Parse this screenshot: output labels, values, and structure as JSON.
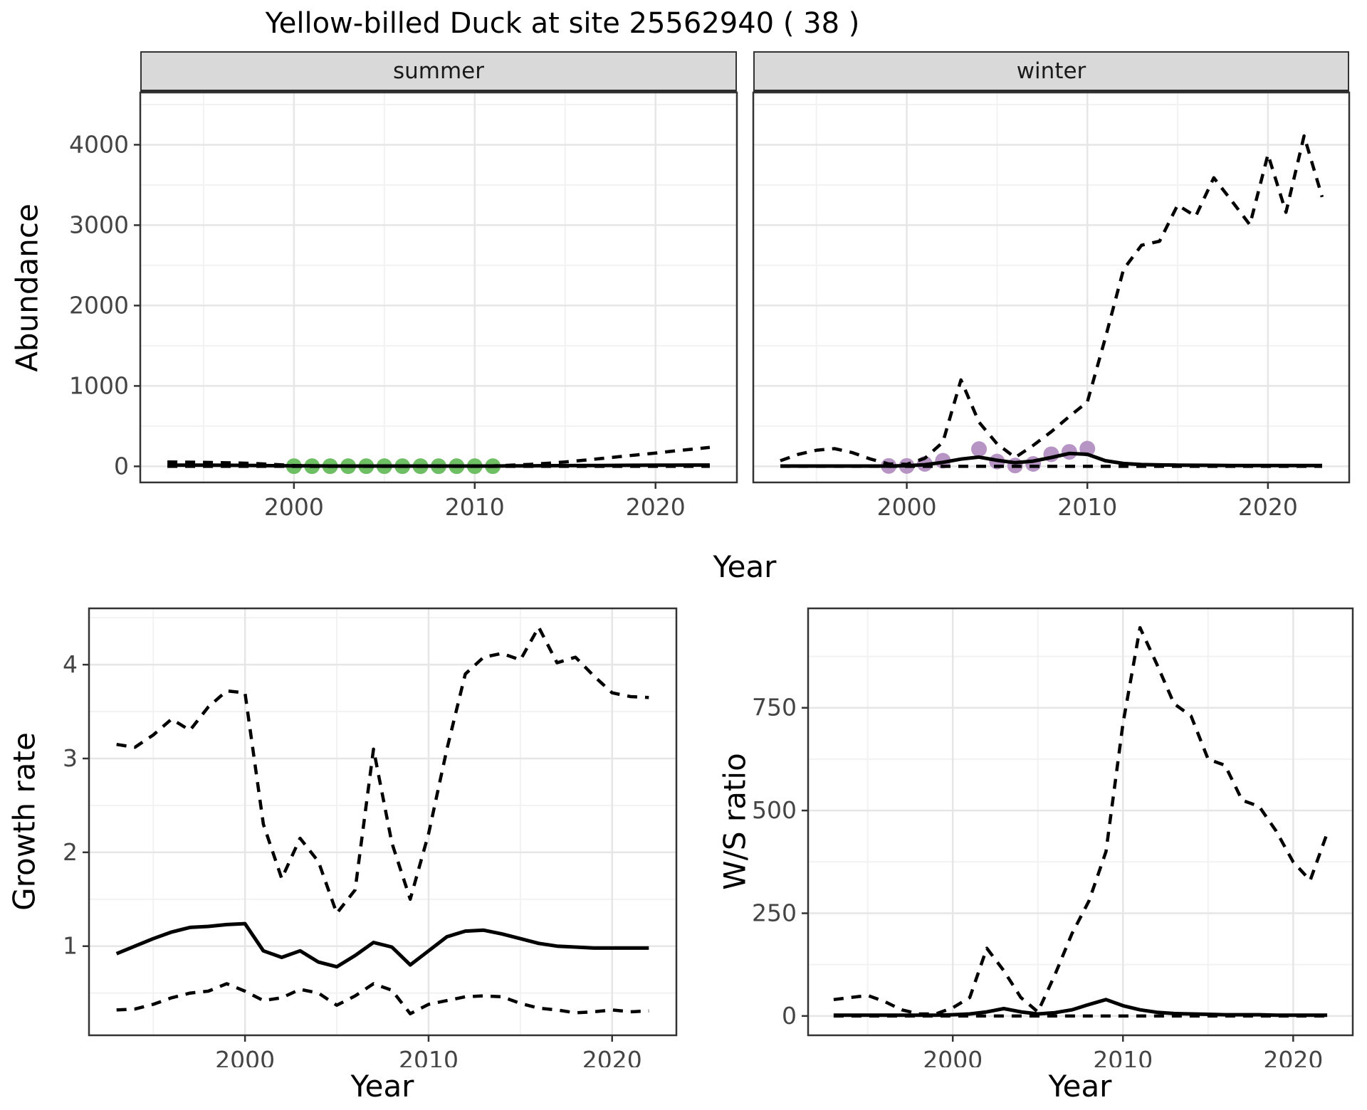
{
  "title": "Yellow-billed Duck at site 25562940 ( 38 )",
  "facets": {
    "summer": "summer",
    "winter": "winter"
  },
  "axis_labels": {
    "abundance": "Abundance",
    "year": "Year",
    "growth": "Growth rate",
    "ws": "W/S ratio"
  },
  "colors": {
    "summer_points": "#6ebe64",
    "winter_points": "#b694c4",
    "line": "#000000",
    "strip_bg": "#d9d9d9",
    "panel_border": "#333333",
    "grid_major": "#e6e6e6",
    "grid_minor": "#f2f2f2",
    "axis_text": "#444444"
  },
  "chart_data": [
    {
      "type": "line",
      "facet": "summer",
      "xlabel": "Year",
      "ylabel": "Abundance",
      "xlim": [
        1991.5,
        2024.5
      ],
      "ylim": [
        -200,
        4650
      ],
      "xticks": [
        2000,
        2010,
        2020
      ],
      "yticks": [
        0,
        1000,
        2000,
        3000,
        4000
      ],
      "xticks_minor": [
        1995,
        2005,
        2015
      ],
      "yticks_minor": [
        500,
        1500,
        2500,
        3500,
        4500
      ],
      "grid": true,
      "legend": "none",
      "x": [
        1993,
        1994,
        1995,
        1996,
        1997,
        1998,
        1999,
        2000,
        2001,
        2002,
        2003,
        2004,
        2005,
        2006,
        2007,
        2008,
        2009,
        2010,
        2011,
        2012,
        2013,
        2014,
        2015,
        2016,
        2017,
        2018,
        2019,
        2020,
        2021,
        2022,
        2023
      ],
      "series": [
        {
          "name": "median",
          "style": "solid",
          "values": [
            15,
            15,
            14,
            13,
            12,
            10,
            8,
            6,
            5,
            4,
            4,
            4,
            4,
            4,
            4,
            4,
            4,
            4,
            4,
            5,
            6,
            8,
            9,
            10,
            11,
            12,
            13,
            14,
            15,
            16,
            16
          ]
        },
        {
          "name": "upper-ci",
          "style": "dashed",
          "values": [
            55,
            52,
            50,
            46,
            42,
            34,
            22,
            10,
            6,
            6,
            6,
            6,
            6,
            6,
            6,
            6,
            6,
            6,
            6,
            14,
            24,
            38,
            55,
            75,
            97,
            120,
            143,
            165,
            190,
            212,
            235
          ]
        },
        {
          "name": "lower-ci",
          "style": "dashed",
          "values": [
            0,
            0,
            0,
            0,
            0,
            0,
            0,
            0,
            0,
            0,
            0,
            0,
            0,
            0,
            0,
            0,
            0,
            0,
            0,
            0,
            0,
            0,
            0,
            0,
            0,
            0,
            0,
            0,
            0,
            0,
            0
          ]
        }
      ],
      "points": {
        "name": "summer-observations",
        "color": "#6ebe64",
        "data": [
          [
            2000,
            2
          ],
          [
            2001,
            2
          ],
          [
            2002,
            2
          ],
          [
            2003,
            2
          ],
          [
            2004,
            2
          ],
          [
            2005,
            2
          ],
          [
            2006,
            2
          ],
          [
            2007,
            2
          ],
          [
            2008,
            2
          ],
          [
            2009,
            2
          ],
          [
            2010,
            2
          ],
          [
            2011,
            2
          ]
        ]
      }
    },
    {
      "type": "line",
      "facet": "winter",
      "xlabel": "Year",
      "ylabel": "",
      "xlim": [
        1991.5,
        2024.5
      ],
      "ylim": [
        -200,
        4650
      ],
      "xticks": [
        2000,
        2010,
        2020
      ],
      "yticks": [
        0,
        1000,
        2000,
        3000,
        4000
      ],
      "xticks_minor": [
        1995,
        2005,
        2015
      ],
      "yticks_minor": [
        500,
        1500,
        2500,
        3500,
        4500
      ],
      "grid": true,
      "legend": "none",
      "x": [
        1993,
        1994,
        1995,
        1996,
        1997,
        1998,
        1999,
        2000,
        2001,
        2002,
        2003,
        2004,
        2005,
        2006,
        2007,
        2008,
        2009,
        2010,
        2011,
        2012,
        2013,
        2014,
        2015,
        2016,
        2017,
        2018,
        2019,
        2020,
        2021,
        2022,
        2023
      ],
      "series": [
        {
          "name": "median",
          "style": "solid",
          "values": [
            4,
            4,
            4,
            4,
            4,
            4,
            4,
            8,
            20,
            50,
            90,
            115,
            75,
            45,
            65,
            110,
            160,
            150,
            70,
            35,
            22,
            18,
            15,
            13,
            12,
            11,
            10,
            10,
            10,
            10,
            10
          ]
        },
        {
          "name": "upper-ci",
          "style": "dashed",
          "values": [
            70,
            150,
            200,
            220,
            170,
            90,
            30,
            25,
            100,
            300,
            1075,
            550,
            280,
            110,
            260,
            430,
            620,
            800,
            1600,
            2450,
            2750,
            2800,
            3250,
            3110,
            3590,
            3300,
            3005,
            3880,
            3160,
            4110,
            3350
          ]
        },
        {
          "name": "lower-ci",
          "style": "dashed",
          "values": [
            0,
            0,
            0,
            0,
            0,
            0,
            0,
            0,
            0,
            0,
            0,
            0,
            0,
            0,
            0,
            0,
            0,
            0,
            0,
            0,
            0,
            0,
            0,
            0,
            0,
            0,
            0,
            0,
            0,
            0,
            0
          ]
        }
      ],
      "points": {
        "name": "winter-observations",
        "color": "#b694c4",
        "data": [
          [
            1999,
            5
          ],
          [
            2000,
            5
          ],
          [
            2001,
            30
          ],
          [
            2002,
            70
          ],
          [
            2004,
            215
          ],
          [
            2005,
            60
          ],
          [
            2006,
            10
          ],
          [
            2007,
            30
          ],
          [
            2008,
            150
          ],
          [
            2009,
            180
          ],
          [
            2010,
            220
          ]
        ]
      }
    },
    {
      "type": "line",
      "facet": "growth-rate",
      "xlabel": "Year",
      "ylabel": "Growth rate",
      "xlim": [
        1991.5,
        2023.5
      ],
      "ylim": [
        0.05,
        4.6
      ],
      "xticks": [
        2000,
        2010,
        2020
      ],
      "yticks": [
        1,
        2,
        3,
        4
      ],
      "xticks_minor": [
        1995,
        2005,
        2015
      ],
      "yticks_minor": [
        0.5,
        1.5,
        2.5,
        3.5,
        4.5
      ],
      "grid": true,
      "legend": "none",
      "x": [
        1993,
        1994,
        1995,
        1996,
        1997,
        1998,
        1999,
        2000,
        2001,
        2002,
        2003,
        2004,
        2005,
        2006,
        2007,
        2008,
        2009,
        2010,
        2011,
        2012,
        2013,
        2014,
        2015,
        2016,
        2017,
        2018,
        2019,
        2020,
        2021,
        2022
      ],
      "series": [
        {
          "name": "median",
          "style": "solid",
          "values": [
            0.92,
            1.0,
            1.08,
            1.15,
            1.2,
            1.21,
            1.23,
            1.24,
            0.95,
            0.88,
            0.95,
            0.83,
            0.78,
            0.9,
            1.04,
            0.99,
            0.8,
            0.95,
            1.1,
            1.16,
            1.17,
            1.13,
            1.08,
            1.03,
            1.0,
            0.99,
            0.98,
            0.98,
            0.98,
            0.98
          ]
        },
        {
          "name": "upper-ci",
          "style": "dashed",
          "values": [
            3.15,
            3.12,
            3.25,
            3.42,
            3.3,
            3.55,
            3.72,
            3.7,
            2.3,
            1.72,
            2.15,
            1.9,
            1.35,
            1.6,
            3.1,
            2.1,
            1.5,
            2.2,
            3.1,
            3.9,
            4.08,
            4.12,
            4.05,
            4.4,
            4.02,
            4.08,
            3.88,
            3.7,
            3.66,
            3.65
          ]
        },
        {
          "name": "lower-ci",
          "style": "dashed",
          "values": [
            0.32,
            0.33,
            0.38,
            0.45,
            0.5,
            0.52,
            0.6,
            0.52,
            0.42,
            0.45,
            0.54,
            0.5,
            0.37,
            0.47,
            0.6,
            0.53,
            0.28,
            0.38,
            0.42,
            0.46,
            0.47,
            0.46,
            0.39,
            0.34,
            0.32,
            0.29,
            0.3,
            0.32,
            0.3,
            0.31
          ]
        }
      ],
      "points": null
    },
    {
      "type": "line",
      "facet": "ws-ratio",
      "xlabel": "Year",
      "ylabel": "W/S ratio",
      "xlim": [
        1991.5,
        2023.5
      ],
      "ylim": [
        -47,
        992
      ],
      "xticks": [
        2000,
        2010,
        2020
      ],
      "yticks": [
        0,
        250,
        500,
        750
      ],
      "xticks_minor": [
        1995,
        2005,
        2015
      ],
      "yticks_minor": [
        125,
        375,
        625,
        875
      ],
      "grid": true,
      "legend": "none",
      "x": [
        1993,
        1994,
        1995,
        1996,
        1997,
        1998,
        1999,
        2000,
        2001,
        2002,
        2003,
        2004,
        2005,
        2006,
        2007,
        2008,
        2009,
        2010,
        2011,
        2012,
        2013,
        2014,
        2015,
        2016,
        2017,
        2018,
        2019,
        2020,
        2021,
        2022
      ],
      "series": [
        {
          "name": "median",
          "style": "solid",
          "values": [
            2,
            2,
            2,
            2,
            2,
            2,
            2,
            3,
            5,
            10,
            18,
            10,
            5,
            8,
            15,
            28,
            40,
            25,
            15,
            9,
            6,
            5,
            4,
            3,
            3,
            3,
            2,
            2,
            2,
            2
          ]
        },
        {
          "name": "upper-ci",
          "style": "dashed",
          "values": [
            40,
            45,
            50,
            35,
            15,
            5,
            5,
            20,
            45,
            165,
            110,
            45,
            10,
            100,
            200,
            280,
            400,
            712,
            945,
            855,
            760,
            730,
            625,
            610,
            525,
            510,
            450,
            375,
            330,
            445
          ]
        },
        {
          "name": "lower-ci",
          "style": "dashed",
          "values": [
            0,
            0,
            0,
            0,
            0,
            0,
            0,
            0,
            0,
            0,
            0,
            0,
            0,
            0,
            0,
            0,
            0,
            0,
            0,
            0,
            0,
            0,
            0,
            0,
            0,
            0,
            0,
            0,
            0,
            0
          ]
        }
      ],
      "points": null
    }
  ]
}
